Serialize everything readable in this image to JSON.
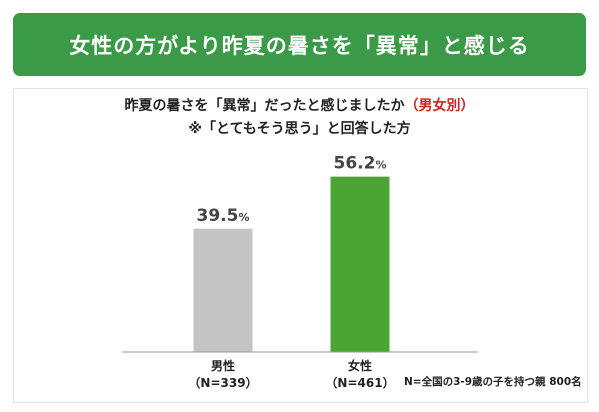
{
  "header": {
    "title": "女性の方がより昨夏の暑さを「異常」と感じる"
  },
  "chart_data": {
    "type": "bar",
    "title_main": "昨夏の暑さを「異常」だったと感じましたか",
    "title_accent": "（男女別）",
    "subtitle": "※「とてもそう思う」と回答した方",
    "categories": [
      "男性",
      "女性"
    ],
    "sample_sizes": [
      "（N=339）",
      "（N=461）"
    ],
    "values": [
      39.5,
      56.2
    ],
    "unit": "%",
    "colors": [
      "#c4c4c4",
      "#4aa533"
    ],
    "ylim": [
      0,
      100
    ],
    "grid": false,
    "legend": "none"
  },
  "footnote": "N=全国の3-9歳の子を持つ親 800名"
}
